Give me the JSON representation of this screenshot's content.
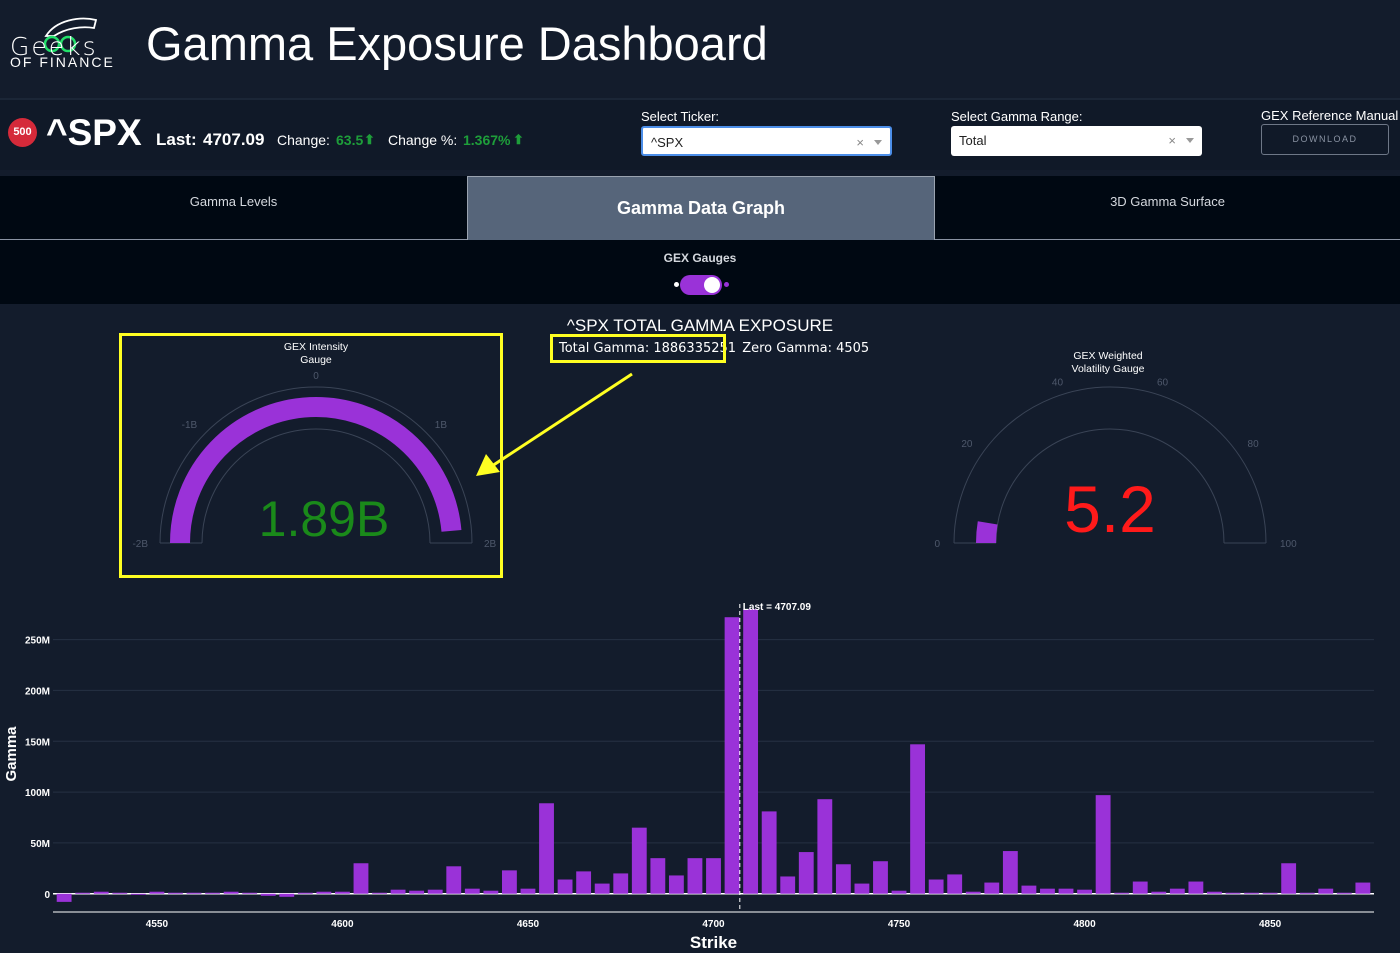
{
  "header": {
    "logo_top": "Geeks",
    "logo_bottom": "OF FINANCE",
    "title": "Gamma Exposure Dashboard"
  },
  "ticker": {
    "badge": "500",
    "symbol": "^SPX",
    "last_label": "Last:",
    "last_value": "4707.09",
    "change_label": "Change:",
    "change_value": "63.5",
    "change_pct_label": "Change %:",
    "change_pct_value": "1.367%"
  },
  "controls": {
    "ticker_label": "Select Ticker:",
    "ticker_value": "^SPX",
    "range_label": "Select Gamma Range:",
    "range_value": "Total",
    "manual_label": "GEX Reference Manual",
    "download_label": "DOWNLOAD",
    "clear_glyph": "×"
  },
  "tabs": [
    {
      "label": "Gamma Levels",
      "active": false
    },
    {
      "label": "Gamma Data Graph",
      "active": true
    },
    {
      "label": "3D Gamma Surface",
      "active": false
    }
  ],
  "toggle": {
    "label": "GEX Gauges",
    "on": true
  },
  "graph": {
    "title": "^SPX TOTAL GAMMA EXPOSURE",
    "total_gamma": "Total Gamma: 1886335251",
    "zero_gamma": "Zero Gamma: 4505"
  },
  "intensity_gauge": {
    "title_line1": "GEX Intensity",
    "title_line2": "Gauge",
    "value_text": "1.89B",
    "value": 1.886335251,
    "min": -2,
    "max": 2,
    "ticks": [
      "-2B",
      "-1B",
      "0",
      "1B",
      "2B"
    ],
    "value_color": "#1a8a1a",
    "bar_color": "#9a32d8"
  },
  "volatility_gauge": {
    "title_line1": "GEX Weighted",
    "title_line2": "Volatility Gauge",
    "value_text": "5.2",
    "value": 5.2,
    "min": 0,
    "max": 100,
    "ticks": [
      "0",
      "20",
      "40",
      "60",
      "80",
      "100"
    ],
    "value_color": "#ff1a1a",
    "bar_color": "#9a32d8"
  },
  "chart_data": {
    "type": "bar",
    "xlabel": "Strike",
    "ylabel": "Gamma",
    "xlim": [
      4522,
      4878
    ],
    "ylim": [
      -15,
      285
    ],
    "x_ticks": [
      4550,
      4600,
      4650,
      4700,
      4750,
      4800,
      4850
    ],
    "y_ticks": [
      0,
      50,
      100,
      150,
      200,
      250
    ],
    "y_tick_labels": [
      "0",
      "50M",
      "100M",
      "150M",
      "200M",
      "250M"
    ],
    "y_unit": "M",
    "last_price": 4707.09,
    "last_label": "Last = 4707.09",
    "bar_color": "#9a32d8",
    "x": [
      4525,
      4530,
      4535,
      4540,
      4545,
      4550,
      4555,
      4560,
      4565,
      4570,
      4575,
      4580,
      4585,
      4590,
      4595,
      4600,
      4605,
      4610,
      4615,
      4620,
      4625,
      4630,
      4635,
      4640,
      4645,
      4650,
      4655,
      4660,
      4665,
      4670,
      4675,
      4680,
      4685,
      4690,
      4695,
      4700,
      4705,
      4710,
      4715,
      4720,
      4725,
      4730,
      4735,
      4740,
      4745,
      4750,
      4755,
      4760,
      4765,
      4770,
      4775,
      4780,
      4785,
      4790,
      4795,
      4800,
      4805,
      4810,
      4815,
      4820,
      4825,
      4830,
      4835,
      4840,
      4845,
      4850,
      4855,
      4860,
      4865,
      4870,
      4875
    ],
    "values": [
      -8,
      1,
      2,
      1,
      -1,
      2,
      1,
      1,
      1,
      2,
      1,
      -2,
      -3,
      1,
      2,
      2,
      30,
      1,
      4,
      3,
      4,
      27,
      5,
      3,
      23,
      5,
      89,
      14,
      22,
      10,
      20,
      65,
      35,
      18,
      35,
      35,
      272,
      280,
      81,
      17,
      41,
      93,
      29,
      10,
      32,
      3,
      147,
      14,
      19,
      2,
      11,
      42,
      8,
      5,
      5,
      4,
      97,
      1,
      12,
      2,
      5,
      12,
      2,
      1,
      1,
      1,
      30,
      1,
      5,
      1,
      11
    ]
  }
}
